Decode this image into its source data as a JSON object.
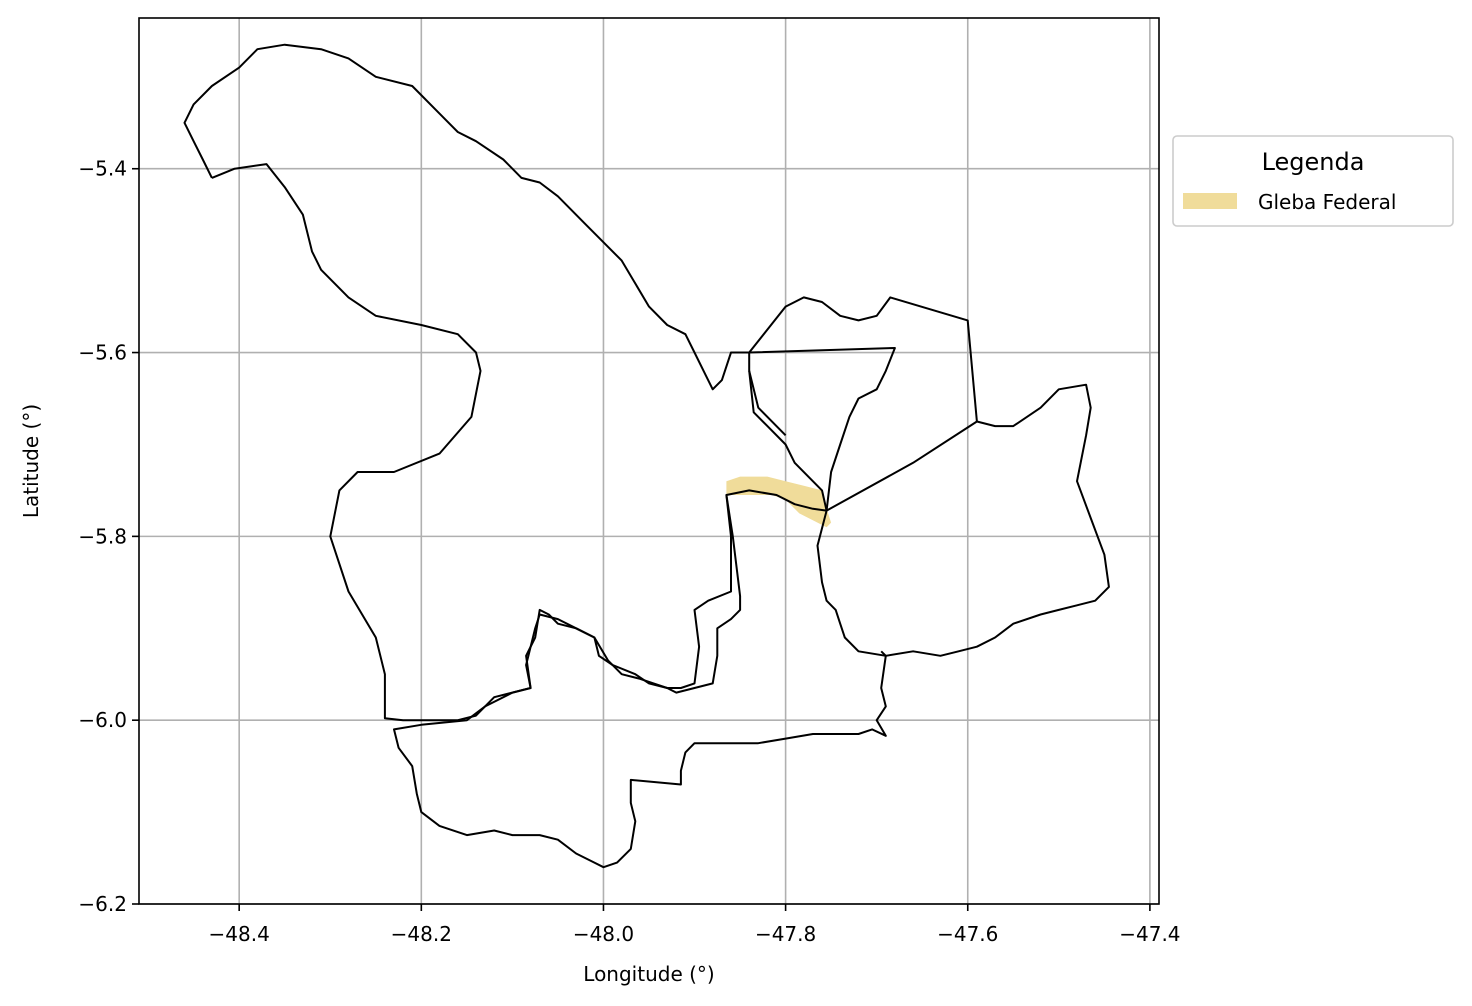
{
  "chart_data": {
    "type": "map",
    "xlabel": "Longitude (°)",
    "ylabel": "Latitude (°)",
    "xlim": [
      -48.51,
      -47.39
    ],
    "ylim": [
      -6.2,
      -5.236
    ],
    "x_ticks": [
      -48.4,
      -48.2,
      -48.0,
      -47.8,
      -47.6,
      -47.4
    ],
    "y_ticks": [
      -6.2,
      -6.0,
      -5.8,
      -5.6,
      -5.4
    ],
    "x_tick_labels": [
      "−48.4",
      "−48.2",
      "−48.0",
      "−47.8",
      "−47.6",
      "−47.4"
    ],
    "y_tick_labels": [
      "−6.2",
      "−6.0",
      "−5.8",
      "−5.6",
      "−5.4"
    ],
    "grid": true,
    "legend": {
      "title": "Legenda",
      "placement": "outside-right-top",
      "entries": [
        {
          "label": "Gleba Federal",
          "color": "#f0dc9a"
        }
      ]
    },
    "boundaries": [
      {
        "id": "north-west",
        "coords": [
          [
            -48.43,
            -5.41
          ],
          [
            -48.405,
            -5.4
          ],
          [
            -48.37,
            -5.395
          ],
          [
            -48.35,
            -5.42
          ],
          [
            -48.33,
            -5.45
          ],
          [
            -48.32,
            -5.49
          ],
          [
            -48.31,
            -5.51
          ],
          [
            -48.28,
            -5.54
          ],
          [
            -48.25,
            -5.56
          ],
          [
            -48.2,
            -5.57
          ],
          [
            -48.16,
            -5.58
          ],
          [
            -48.14,
            -5.6
          ],
          [
            -48.135,
            -5.62
          ],
          [
            -48.145,
            -5.67
          ],
          [
            -48.18,
            -5.71
          ],
          [
            -48.23,
            -5.73
          ],
          [
            -48.27,
            -5.73
          ],
          [
            -48.29,
            -5.75
          ],
          [
            -48.3,
            -5.8
          ],
          [
            -48.28,
            -5.86
          ],
          [
            -48.25,
            -5.91
          ],
          [
            -48.24,
            -5.95
          ],
          [
            -48.24,
            -5.98
          ],
          [
            -48.24,
            -5.998
          ],
          [
            -48.22,
            -6.0
          ],
          [
            -48.18,
            -6.0
          ],
          [
            -48.16,
            -6.0
          ],
          [
            -48.14,
            -5.995
          ],
          [
            -48.12,
            -5.975
          ],
          [
            -48.1,
            -5.97
          ],
          [
            -48.08,
            -5.965
          ],
          [
            -48.085,
            -5.93
          ],
          [
            -48.075,
            -5.91
          ],
          [
            -48.07,
            -5.88
          ],
          [
            -48.06,
            -5.885
          ],
          [
            -48.05,
            -5.895
          ],
          [
            -48.03,
            -5.9
          ],
          [
            -48.01,
            -5.91
          ],
          [
            -48.005,
            -5.93
          ],
          [
            -47.99,
            -5.94
          ],
          [
            -47.965,
            -5.95
          ],
          [
            -47.95,
            -5.96
          ],
          [
            -47.93,
            -5.965
          ],
          [
            -47.92,
            -5.97
          ],
          [
            -47.9,
            -5.965
          ],
          [
            -47.88,
            -5.96
          ],
          [
            -47.875,
            -5.93
          ],
          [
            -47.875,
            -5.9
          ],
          [
            -47.86,
            -5.89
          ],
          [
            -47.85,
            -5.88
          ],
          [
            -47.85,
            -5.865
          ],
          [
            -47.858,
            -5.8
          ],
          [
            -47.865,
            -5.755
          ],
          [
            -47.84,
            -5.75
          ],
          [
            -47.81,
            -5.755
          ],
          [
            -47.79,
            -5.765
          ],
          [
            -47.77,
            -5.77
          ],
          [
            -47.755,
            -5.772
          ],
          [
            -47.76,
            -5.75
          ],
          [
            -47.79,
            -5.72
          ],
          [
            -47.8,
            -5.7
          ],
          [
            -47.82,
            -5.68
          ],
          [
            -47.835,
            -5.665
          ],
          [
            -47.84,
            -5.62
          ],
          [
            -47.84,
            -5.6
          ],
          [
            -47.86,
            -5.6
          ],
          [
            -47.87,
            -5.63
          ],
          [
            -47.88,
            -5.64
          ],
          [
            -47.89,
            -5.62
          ],
          [
            -47.9,
            -5.6
          ],
          [
            -47.91,
            -5.58
          ],
          [
            -47.93,
            -5.57
          ],
          [
            -47.95,
            -5.55
          ],
          [
            -47.98,
            -5.5
          ],
          [
            -48.0,
            -5.48
          ],
          [
            -48.02,
            -5.46
          ],
          [
            -48.05,
            -5.43
          ],
          [
            -48.07,
            -5.415
          ],
          [
            -48.09,
            -5.41
          ],
          [
            -48.11,
            -5.39
          ],
          [
            -48.14,
            -5.37
          ],
          [
            -48.16,
            -5.36
          ],
          [
            -48.18,
            -5.34
          ],
          [
            -48.21,
            -5.31
          ],
          [
            -48.25,
            -5.3
          ],
          [
            -48.28,
            -5.28
          ],
          [
            -48.31,
            -5.27
          ],
          [
            -48.35,
            -5.265
          ],
          [
            -48.38,
            -5.27
          ],
          [
            -48.4,
            -5.29
          ],
          [
            -48.43,
            -5.31
          ],
          [
            -48.45,
            -5.33
          ],
          [
            -48.46,
            -5.35
          ],
          [
            -48.45,
            -5.37
          ],
          [
            -48.44,
            -5.39
          ],
          [
            -48.43,
            -5.41
          ]
        ]
      },
      {
        "id": "north-small",
        "coords": [
          [
            -47.84,
            -5.6
          ],
          [
            -47.8,
            -5.55
          ],
          [
            -47.78,
            -5.54
          ],
          [
            -47.76,
            -5.545
          ],
          [
            -47.74,
            -5.56
          ],
          [
            -47.72,
            -5.565
          ],
          [
            -47.7,
            -5.56
          ],
          [
            -47.685,
            -5.54
          ],
          [
            -47.6,
            -5.565
          ],
          [
            -47.59,
            -5.675
          ]
        ]
      },
      {
        "id": "north-small-base",
        "coords": [
          [
            -47.84,
            -5.6
          ],
          [
            -47.68,
            -5.595
          ],
          [
            -47.69,
            -5.62
          ],
          [
            -47.7,
            -5.64
          ],
          [
            -47.72,
            -5.65
          ],
          [
            -47.73,
            -5.67
          ],
          [
            -47.74,
            -5.7
          ],
          [
            -47.75,
            -5.73
          ],
          [
            -47.755,
            -5.772
          ]
        ]
      },
      {
        "id": "divider-west",
        "coords": [
          [
            -47.84,
            -5.62
          ],
          [
            -47.83,
            -5.66
          ],
          [
            -47.8,
            -5.69
          ]
        ]
      },
      {
        "id": "east",
        "coords": [
          [
            -47.755,
            -5.772
          ],
          [
            -47.66,
            -5.72
          ],
          [
            -47.59,
            -5.675
          ],
          [
            -47.57,
            -5.68
          ],
          [
            -47.55,
            -5.68
          ],
          [
            -47.52,
            -5.66
          ],
          [
            -47.5,
            -5.64
          ],
          [
            -47.47,
            -5.635
          ],
          [
            -47.465,
            -5.66
          ],
          [
            -47.47,
            -5.69
          ],
          [
            -47.48,
            -5.74
          ],
          [
            -47.465,
            -5.78
          ],
          [
            -47.45,
            -5.82
          ],
          [
            -47.445,
            -5.855
          ],
          [
            -47.46,
            -5.87
          ],
          [
            -47.48,
            -5.875
          ],
          [
            -47.5,
            -5.88
          ],
          [
            -47.52,
            -5.885
          ],
          [
            -47.55,
            -5.895
          ],
          [
            -47.57,
            -5.91
          ],
          [
            -47.59,
            -5.92
          ],
          [
            -47.61,
            -5.925
          ],
          [
            -47.63,
            -5.93
          ],
          [
            -47.66,
            -5.925
          ],
          [
            -47.69,
            -5.93
          ],
          [
            -47.72,
            -5.925
          ],
          [
            -47.735,
            -5.91
          ],
          [
            -47.74,
            -5.895
          ],
          [
            -47.745,
            -5.88
          ],
          [
            -47.755,
            -5.87
          ],
          [
            -47.76,
            -5.85
          ],
          [
            -47.765,
            -5.81
          ],
          [
            -47.755,
            -5.772
          ]
        ]
      },
      {
        "id": "south",
        "coords": [
          [
            -47.865,
            -5.755
          ],
          [
            -47.86,
            -5.8
          ],
          [
            -47.86,
            -5.86
          ],
          [
            -47.885,
            -5.87
          ],
          [
            -47.9,
            -5.88
          ],
          [
            -47.895,
            -5.92
          ],
          [
            -47.9,
            -5.96
          ],
          [
            -47.915,
            -5.965
          ],
          [
            -47.93,
            -5.965
          ],
          [
            -47.945,
            -5.96
          ],
          [
            -47.96,
            -5.955
          ],
          [
            -47.98,
            -5.95
          ],
          [
            -47.995,
            -5.935
          ],
          [
            -48.01,
            -5.91
          ],
          [
            -48.03,
            -5.9
          ],
          [
            -48.05,
            -5.89
          ],
          [
            -48.07,
            -5.885
          ],
          [
            -48.075,
            -5.9
          ],
          [
            -48.085,
            -5.94
          ],
          [
            -48.08,
            -5.965
          ],
          [
            -48.1,
            -5.97
          ],
          [
            -48.13,
            -5.985
          ],
          [
            -48.15,
            -6.0
          ],
          [
            -48.2,
            -6.005
          ],
          [
            -48.23,
            -6.01
          ],
          [
            -48.225,
            -6.03
          ],
          [
            -48.21,
            -6.05
          ],
          [
            -48.205,
            -6.08
          ],
          [
            -48.2,
            -6.1
          ],
          [
            -48.18,
            -6.115
          ],
          [
            -48.15,
            -6.125
          ],
          [
            -48.12,
            -6.12
          ],
          [
            -48.1,
            -6.125
          ],
          [
            -48.07,
            -6.125
          ],
          [
            -48.05,
            -6.13
          ],
          [
            -48.03,
            -6.145
          ],
          [
            -48.01,
            -6.155
          ],
          [
            -48.0,
            -6.16
          ],
          [
            -47.985,
            -6.155
          ],
          [
            -47.97,
            -6.14
          ],
          [
            -47.965,
            -6.11
          ],
          [
            -47.97,
            -6.09
          ],
          [
            -47.97,
            -6.065
          ],
          [
            -47.915,
            -6.07
          ],
          [
            -47.915,
            -6.055
          ],
          [
            -47.91,
            -6.035
          ],
          [
            -47.9,
            -6.025
          ],
          [
            -47.88,
            -6.025
          ],
          [
            -47.86,
            -6.025
          ],
          [
            -47.83,
            -6.025
          ],
          [
            -47.8,
            -6.02
          ],
          [
            -47.77,
            -6.015
          ],
          [
            -47.74,
            -6.015
          ],
          [
            -47.72,
            -6.015
          ],
          [
            -47.705,
            -6.01
          ],
          [
            -47.69,
            -6.017
          ],
          [
            -47.7,
            -6.0
          ],
          [
            -47.69,
            -5.985
          ],
          [
            -47.695,
            -5.965
          ],
          [
            -47.69,
            -5.93
          ],
          [
            -47.695,
            -5.925
          ]
        ]
      }
    ],
    "gleba_federal": {
      "color": "#f0dc9a",
      "coords": [
        [
          -47.865,
          -5.74
        ],
        [
          -47.85,
          -5.735
        ],
        [
          -47.835,
          -5.735
        ],
        [
          -47.82,
          -5.735
        ],
        [
          -47.8,
          -5.74
        ],
        [
          -47.78,
          -5.745
        ],
        [
          -47.76,
          -5.75
        ],
        [
          -47.755,
          -5.77
        ],
        [
          -47.75,
          -5.785
        ],
        [
          -47.755,
          -5.79
        ],
        [
          -47.765,
          -5.785
        ],
        [
          -47.775,
          -5.78
        ],
        [
          -47.785,
          -5.775
        ],
        [
          -47.8,
          -5.76
        ],
        [
          -47.815,
          -5.755
        ],
        [
          -47.83,
          -5.755
        ],
        [
          -47.845,
          -5.755
        ],
        [
          -47.865,
          -5.755
        ]
      ]
    }
  }
}
